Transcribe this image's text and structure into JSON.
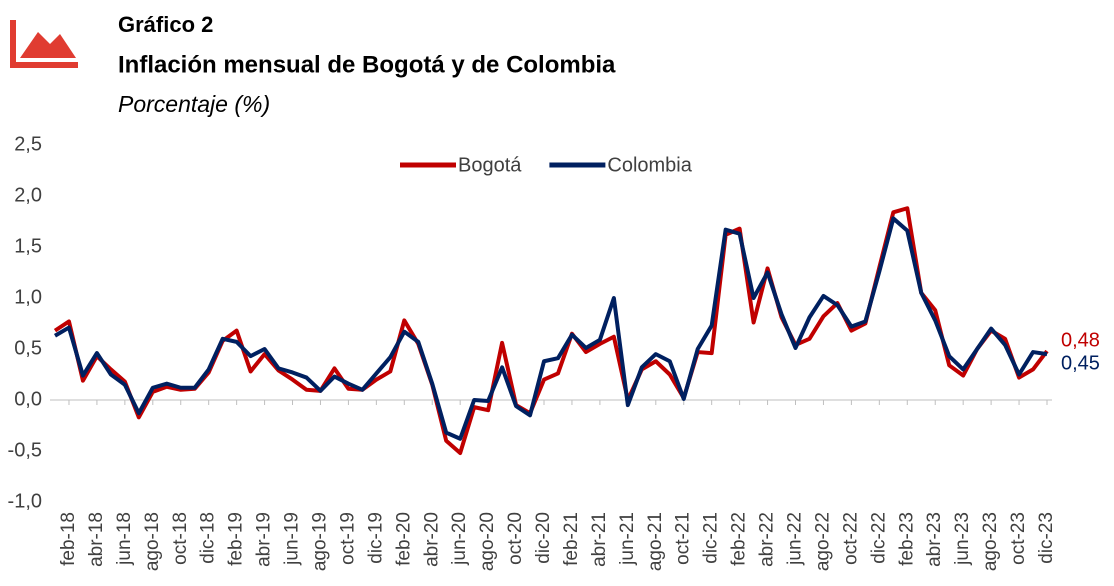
{
  "chart_data": {
    "type": "line",
    "title": "Gráfico 2",
    "subtitle": "Inflación mensual de Bogotá y de Colombia",
    "y_label": "Porcentaje (%)",
    "categories": [
      null,
      "feb-18",
      null,
      "abr-18",
      null,
      "jun-18",
      null,
      "ago-18",
      null,
      "oct-18",
      null,
      "dic-18",
      null,
      "feb-19",
      null,
      "abr-19",
      null,
      "jun-19",
      null,
      "ago-19",
      null,
      "oct-19",
      null,
      "dic-19",
      null,
      "feb-20",
      null,
      "abr-20",
      null,
      "jun-20",
      null,
      "ago-20",
      null,
      "oct-20",
      null,
      "dic-20",
      null,
      "feb-21",
      null,
      "abr-21",
      null,
      "jun-21",
      null,
      "ago-21",
      null,
      "oct-21",
      null,
      "dic-21",
      null,
      "feb-22",
      null,
      "abr-22",
      null,
      "jun-22",
      null,
      "ago-22",
      null,
      "oct-22",
      null,
      "dic-22",
      null,
      "feb-23",
      null,
      "abr-23",
      null,
      "jun-23",
      null,
      "ago-23",
      null,
      "oct-23",
      null,
      "dic-23"
    ],
    "series": [
      {
        "name": "Bogotá",
        "color": "#c00000",
        "values": [
          0.68,
          0.77,
          0.19,
          0.43,
          0.3,
          0.18,
          -0.17,
          0.08,
          0.13,
          0.1,
          0.11,
          0.27,
          0.58,
          0.68,
          0.28,
          0.45,
          0.29,
          0.2,
          0.1,
          0.09,
          0.31,
          0.11,
          0.1,
          0.2,
          0.28,
          0.78,
          0.55,
          0.15,
          -0.4,
          -0.52,
          -0.07,
          -0.1,
          0.56,
          -0.05,
          -0.13,
          0.2,
          0.26,
          0.65,
          0.47,
          0.55,
          0.62,
          0.0,
          0.3,
          0.38,
          0.25,
          0.02,
          0.47,
          0.46,
          1.62,
          1.68,
          0.76,
          1.29,
          0.81,
          0.54,
          0.6,
          0.82,
          0.95,
          0.68,
          0.75,
          1.3,
          1.84,
          1.88,
          1.05,
          0.88,
          0.34,
          0.24,
          0.5,
          0.68,
          0.6,
          0.22,
          0.3,
          0.48
        ],
        "value_labels": [
          null,
          null,
          null,
          null,
          null,
          null,
          null,
          null,
          null,
          null,
          null,
          null,
          null,
          null,
          null,
          null,
          null,
          null,
          null,
          null,
          null,
          null,
          null,
          null,
          null,
          null,
          null,
          null,
          null,
          null,
          null,
          null,
          null,
          null,
          null,
          null,
          null,
          null,
          null,
          null,
          null,
          null,
          null,
          null,
          null,
          null,
          null,
          null,
          null,
          null,
          null,
          null,
          null,
          null,
          null,
          null,
          null,
          null,
          null,
          null,
          null,
          null,
          null,
          null,
          null,
          null,
          null,
          null,
          null,
          null,
          null,
          "0,48"
        ]
      },
      {
        "name": "Colombia",
        "color": "#002060",
        "values": [
          0.63,
          0.71,
          0.24,
          0.46,
          0.25,
          0.15,
          -0.13,
          0.12,
          0.16,
          0.12,
          0.12,
          0.3,
          0.6,
          0.57,
          0.43,
          0.5,
          0.31,
          0.27,
          0.22,
          0.09,
          0.23,
          0.16,
          0.1,
          0.26,
          0.42,
          0.67,
          0.57,
          0.16,
          -0.32,
          -0.38,
          0.0,
          -0.01,
          0.32,
          -0.06,
          -0.15,
          0.38,
          0.41,
          0.64,
          0.51,
          0.59,
          1.0,
          -0.05,
          0.32,
          0.45,
          0.38,
          0.01,
          0.5,
          0.73,
          1.67,
          1.63,
          1.0,
          1.25,
          0.84,
          0.51,
          0.81,
          1.02,
          0.93,
          0.72,
          0.77,
          1.26,
          1.78,
          1.66,
          1.05,
          0.78,
          0.43,
          0.3,
          0.5,
          0.7,
          0.54,
          0.25,
          0.47,
          0.45
        ],
        "value_labels": [
          null,
          null,
          null,
          null,
          null,
          null,
          null,
          null,
          null,
          null,
          null,
          null,
          null,
          null,
          null,
          null,
          null,
          null,
          null,
          null,
          null,
          null,
          null,
          null,
          null,
          null,
          null,
          null,
          null,
          null,
          null,
          null,
          null,
          null,
          null,
          null,
          null,
          null,
          null,
          null,
          null,
          null,
          null,
          null,
          null,
          null,
          null,
          null,
          null,
          null,
          null,
          null,
          null,
          null,
          null,
          null,
          null,
          null,
          null,
          null,
          null,
          null,
          null,
          null,
          null,
          null,
          null,
          null,
          null,
          null,
          null,
          "0,45"
        ]
      }
    ],
    "ylim": [
      -1.0,
      2.5
    ],
    "yticks": [
      {
        "value": -1.0,
        "label": "-1,0"
      },
      {
        "value": -0.5,
        "label": "-0,5"
      },
      {
        "value": 0.0,
        "label": "0,0"
      },
      {
        "value": 0.5,
        "label": "0,5"
      },
      {
        "value": 1.0,
        "label": "1,0"
      },
      {
        "value": 1.5,
        "label": "1,5"
      },
      {
        "value": 2.0,
        "label": "2,0"
      },
      {
        "value": 2.5,
        "label": "2,5"
      }
    ],
    "legend": "top",
    "grid": false
  }
}
